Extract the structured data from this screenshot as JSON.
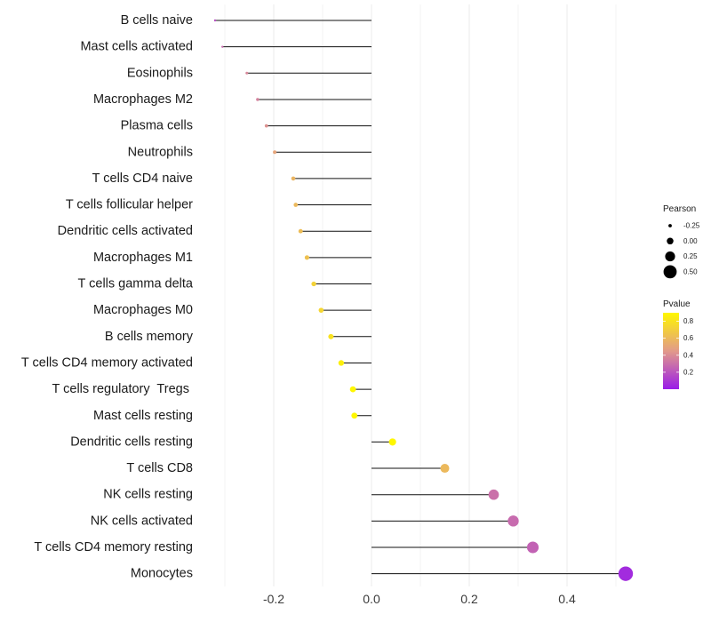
{
  "chart_data": {
    "type": "lollipop",
    "title": "",
    "xlabel": "",
    "ylabel": "",
    "xlim": [
      -0.32,
      0.54
    ],
    "x_ticks": [
      -0.2,
      0.0,
      0.2,
      0.4
    ],
    "x_tick_labels": [
      "-0.2",
      "0.0",
      "0.2",
      "0.4"
    ],
    "grid": true,
    "categories": [
      "B cells naive",
      "Mast cells activated",
      "Eosinophils",
      "Macrophages M2",
      "Plasma cells",
      "Neutrophils",
      "T cells CD4 naive",
      "T cells follicular helper",
      "Dendritic cells activated",
      "Macrophages M1",
      "T cells gamma delta",
      "Macrophages M0",
      "B cells memory",
      "T cells CD4 memory activated",
      "T cells regulatory  Tregs ",
      "Mast cells resting",
      "Dendritic cells resting",
      "T cells CD8",
      "NK cells resting",
      "NK cells activated",
      "T cells CD4 memory resting",
      "Monocytes"
    ],
    "pearson": [
      -0.32,
      -0.305,
      -0.255,
      -0.233,
      -0.215,
      -0.198,
      -0.16,
      -0.155,
      -0.145,
      -0.132,
      -0.118,
      -0.103,
      -0.083,
      -0.062,
      -0.038,
      -0.035,
      0.043,
      0.15,
      0.25,
      0.29,
      0.33,
      0.52
    ],
    "pvalue": [
      0.18,
      0.28,
      0.38,
      0.36,
      0.42,
      0.5,
      0.58,
      0.6,
      0.62,
      0.64,
      0.72,
      0.74,
      0.8,
      0.86,
      0.96,
      0.97,
      0.95,
      0.6,
      0.3,
      0.28,
      0.25,
      0.05
    ],
    "legend": {
      "size_title": "Pearson",
      "size_labels": [
        "-0.25",
        "0.00",
        "0.25",
        "0.50"
      ],
      "size_values": [
        -0.25,
        0.0,
        0.25,
        0.5
      ],
      "color_title": "Pvalue",
      "color_ticks": [
        0.8,
        0.6,
        0.4,
        0.2
      ],
      "color_tick_labels": [
        "0.8",
        "0.6",
        "0.4",
        "0.2"
      ],
      "color_range": [
        0.0,
        0.9
      ],
      "placement": "right"
    },
    "colors": {
      "low": "#9a1de8",
      "mid": "#e29a8a",
      "high": "#fff700",
      "stem": "#111111",
      "grid": "#ebebeb"
    }
  }
}
